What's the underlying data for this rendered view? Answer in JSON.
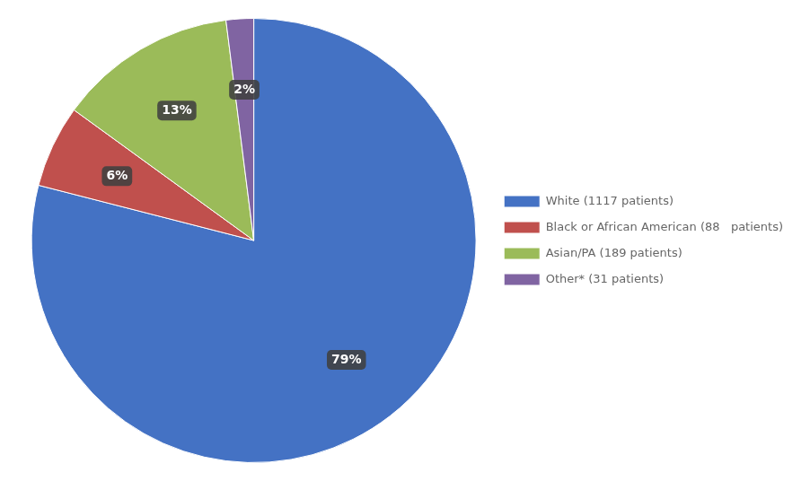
{
  "chart_data": {
    "type": "pie",
    "categories": [
      "White (1117 patients)",
      "Black or African American (88\n  patients)",
      "Asian/PA (189 patients)",
      "Other* (31 patients)"
    ],
    "values": [
      79,
      6,
      13,
      2
    ],
    "value_labels": [
      "79%",
      "6%",
      "13%",
      "2%"
    ],
    "colors": [
      "#4472C4",
      "#C0504D",
      "#9BBB59",
      "#8064A2"
    ],
    "data_labels": true,
    "legend": "right"
  }
}
